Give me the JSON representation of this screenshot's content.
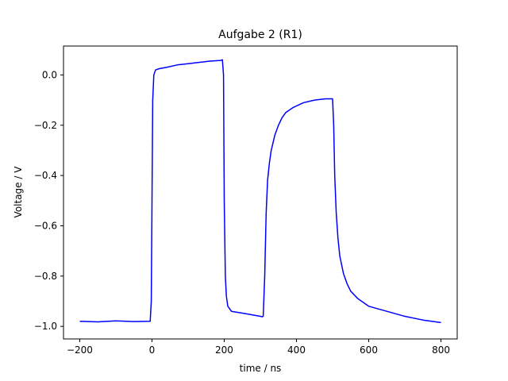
{
  "chart_data": {
    "type": "line",
    "title": "Aufgabe 2 (R1)",
    "xlabel": "time / ns",
    "ylabel": "Voltage / V",
    "xlim": [
      -245,
      845
    ],
    "ylim": [
      -1.05,
      0.115
    ],
    "xticks": [
      -200,
      0,
      200,
      400,
      600,
      800
    ],
    "xtick_labels": [
      "−200",
      "0",
      "200",
      "400",
      "600",
      "800"
    ],
    "yticks": [
      -1.0,
      -0.8,
      -0.6,
      -0.4,
      -0.2,
      0.0
    ],
    "ytick_labels": [
      "−1.0",
      "−0.8",
      "−0.6",
      "−0.4",
      "−0.2",
      "0.0"
    ],
    "grid": false,
    "legend": "none",
    "series": [
      {
        "color": "#0000ff",
        "x": [
          -200,
          -150,
          -100,
          -50,
          -5,
          -2,
          0,
          2,
          5,
          10,
          20,
          40,
          70,
          100,
          130,
          160,
          190,
          195,
          198,
          200,
          203,
          206,
          210,
          220,
          240,
          260,
          280,
          300,
          305,
          308,
          312,
          316,
          320,
          325,
          330,
          340,
          350,
          360,
          370,
          390,
          420,
          450,
          480,
          500,
          503,
          506,
          510,
          515,
          520,
          530,
          540,
          550,
          570,
          600,
          650,
          700,
          750,
          800
        ],
        "y": [
          -0.98,
          -0.982,
          -0.978,
          -0.981,
          -0.98,
          -0.9,
          -0.5,
          -0.1,
          0.0,
          0.02,
          0.025,
          0.03,
          0.04,
          0.045,
          0.05,
          0.055,
          0.058,
          0.06,
          0.0,
          -0.5,
          -0.8,
          -0.88,
          -0.92,
          -0.94,
          -0.945,
          -0.95,
          -0.955,
          -0.96,
          -0.962,
          -0.96,
          -0.8,
          -0.55,
          -0.42,
          -0.35,
          -0.3,
          -0.24,
          -0.2,
          -0.17,
          -0.15,
          -0.13,
          -0.11,
          -0.1,
          -0.095,
          -0.095,
          -0.2,
          -0.4,
          -0.55,
          -0.65,
          -0.72,
          -0.79,
          -0.83,
          -0.86,
          -0.89,
          -0.92,
          -0.94,
          -0.96,
          -0.975,
          -0.985
        ]
      }
    ]
  }
}
